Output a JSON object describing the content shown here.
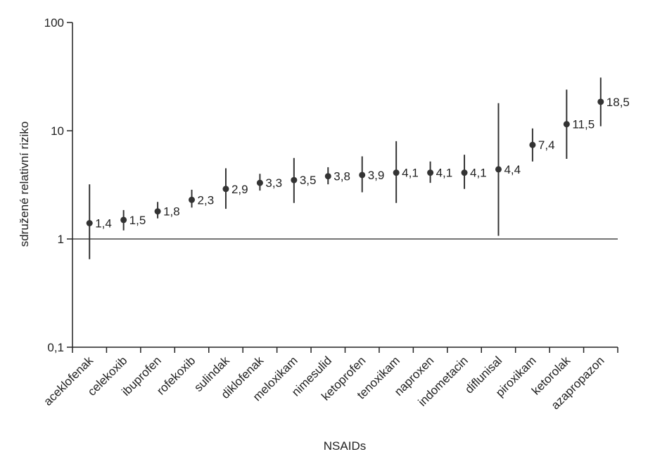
{
  "chart_data": {
    "type": "scatter",
    "xlabel": "NSAIDs",
    "ylabel": "sdružené relativní riziko",
    "yscale": "log",
    "ylim": [
      0.1,
      100
    ],
    "yticks": [
      {
        "value": 100,
        "label": "100"
      },
      {
        "value": 10,
        "label": "10"
      },
      {
        "value": 1,
        "label": "1"
      },
      {
        "value": 0.1,
        "label": "0,1"
      }
    ],
    "reference_line": 1,
    "grid": false,
    "categories": [
      "aceklofenak",
      "celekoxib",
      "ibuprofen",
      "rofekoxib",
      "sulindak",
      "diklofenak",
      "meloxikam",
      "nimesulid",
      "ketoprofen",
      "tenoxikam",
      "naproxen",
      "indometacin",
      "diflunisal",
      "piroxikam",
      "ketorolak",
      "azapropazon"
    ],
    "values": [
      1.4,
      1.5,
      1.8,
      2.3,
      2.9,
      3.3,
      3.5,
      3.8,
      3.9,
      4.1,
      4.1,
      4.1,
      4.4,
      7.4,
      11.5,
      18.5
    ],
    "value_labels": [
      "1,4",
      "1,5",
      "1,8",
      "2,3",
      "2,9",
      "3,3",
      "3,5",
      "3,8",
      "3,9",
      "4,1",
      "4,1",
      "4,1",
      "4,4",
      "7,4",
      "11,5",
      "18,5"
    ],
    "ci_low": [
      0.65,
      1.2,
      1.55,
      1.95,
      1.9,
      2.8,
      2.15,
      3.2,
      2.7,
      2.15,
      3.3,
      2.9,
      1.07,
      5.2,
      5.5,
      11.0
    ],
    "ci_high": [
      3.2,
      1.85,
      2.2,
      2.85,
      4.5,
      4.0,
      5.6,
      4.6,
      5.8,
      8.0,
      5.2,
      6.0,
      18.0,
      10.5,
      24.0,
      31.0
    ],
    "colors": {
      "point": "#333333",
      "ci_line": "#333333",
      "axis": "#222222"
    }
  }
}
